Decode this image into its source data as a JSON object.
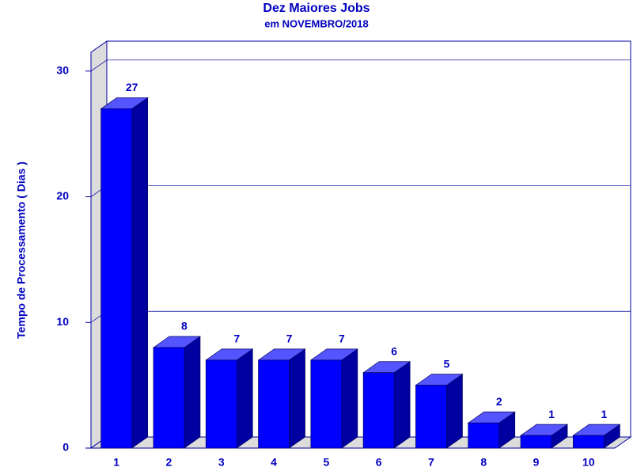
{
  "chart_data": {
    "type": "bar3d",
    "title": "Dez Maiores Jobs",
    "subtitle": "em NOVEMBRO/2018",
    "y_label": "Tempo de Processamento ( Dias )",
    "categories": [
      "1",
      "2",
      "3",
      "4",
      "5",
      "6",
      "7",
      "8",
      "9",
      "10"
    ],
    "values": [
      27,
      8,
      7,
      7,
      7,
      6,
      5,
      2,
      1,
      1
    ],
    "color": "#0000ff",
    "ylim": [
      0,
      31.5
    ],
    "yticks": [
      0,
      10,
      20,
      30
    ],
    "grid": true
  }
}
